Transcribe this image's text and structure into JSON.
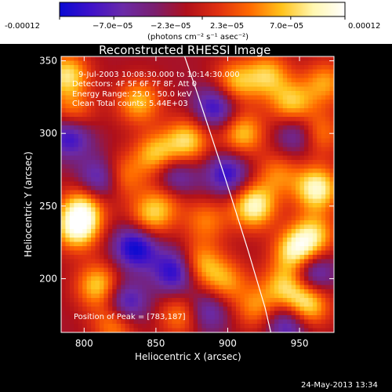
{
  "colorbar": {
    "tick_labels": [
      "-0.00012",
      "−7.0e−05",
      "−2.3e−05",
      "2.3e−05",
      "7.0e−05",
      "0.00012"
    ],
    "unit_label": "(photons cm⁻² s⁻¹ asec⁻²)",
    "colors": [
      "#0a0ad2",
      "#3f12c9",
      "#6a2aa8",
      "#7a1f6e",
      "#b0101a",
      "#e03010",
      "#ff6a00",
      "#ffc21a",
      "#fff7b0",
      "#ffffff"
    ]
  },
  "annotations": {
    "time_range": "9-Jul-2003 10:08:30.000 to 10:14:30.000",
    "detectors": "Detectors: 4F 5F 6F 7F 8F, Att 0",
    "energy": "Energy Range: 25.0 - 50.0 keV",
    "clean": "Clean    Total counts: 5.44E+03",
    "peak": "Position of Peak = [783,187]"
  },
  "footer": {
    "date": "24-May-2013 13:34"
  },
  "chart_data": {
    "type": "heatmap",
    "title": "Reconstructed RHESSI Image",
    "xlabel": "Heliocentric X (arcsec)",
    "ylabel": "Heliocentric Y (arcsec)",
    "xlim": [
      784,
      974
    ],
    "ylim": [
      163,
      353
    ],
    "x_ticks": [
      800,
      850,
      900,
      950
    ],
    "y_ticks": [
      200,
      250,
      300,
      350
    ],
    "limb_curve": {
      "x": [
        870,
        878,
        888,
        898,
        906,
        914,
        920,
        926,
        930
      ],
      "y": [
        353,
        330,
        300,
        270,
        245,
        220,
        200,
        180,
        163
      ]
    },
    "hot_spots": [
      {
        "x": 788,
        "y": 340,
        "v": 0.85
      },
      {
        "x": 792,
        "y": 312,
        "v": 0.7
      },
      {
        "x": 800,
        "y": 250,
        "v": 0.75
      },
      {
        "x": 795,
        "y": 235,
        "v": 1.0
      },
      {
        "x": 810,
        "y": 195,
        "v": 0.8
      },
      {
        "x": 825,
        "y": 270,
        "v": 0.65
      },
      {
        "x": 838,
        "y": 322,
        "v": 0.7
      },
      {
        "x": 850,
        "y": 285,
        "v": 0.75
      },
      {
        "x": 846,
        "y": 242,
        "v": 0.7
      },
      {
        "x": 858,
        "y": 258,
        "v": 0.6
      },
      {
        "x": 872,
        "y": 295,
        "v": 0.8
      },
      {
        "x": 880,
        "y": 210,
        "v": 0.7
      },
      {
        "x": 868,
        "y": 175,
        "v": 0.6
      },
      {
        "x": 822,
        "y": 170,
        "v": 0.75
      },
      {
        "x": 905,
        "y": 335,
        "v": 0.7
      },
      {
        "x": 910,
        "y": 300,
        "v": 0.75
      },
      {
        "x": 918,
        "y": 250,
        "v": 1.0
      },
      {
        "x": 898,
        "y": 198,
        "v": 0.6
      },
      {
        "x": 928,
        "y": 340,
        "v": 0.7
      },
      {
        "x": 945,
        "y": 320,
        "v": 0.75
      },
      {
        "x": 962,
        "y": 300,
        "v": 0.7
      },
      {
        "x": 962,
        "y": 262,
        "v": 1.0
      },
      {
        "x": 960,
        "y": 230,
        "v": 0.7
      },
      {
        "x": 948,
        "y": 218,
        "v": 1.0
      },
      {
        "x": 940,
        "y": 195,
        "v": 0.7
      },
      {
        "x": 955,
        "y": 182,
        "v": 0.95
      },
      {
        "x": 920,
        "y": 180,
        "v": 0.55
      },
      {
        "x": 968,
        "y": 335,
        "v": 0.6
      },
      {
        "x": 935,
        "y": 272,
        "v": 0.5
      },
      {
        "x": 885,
        "y": 240,
        "v": 0.5
      }
    ],
    "cold_spots": [
      {
        "x": 790,
        "y": 300,
        "v": -0.9
      },
      {
        "x": 812,
        "y": 268,
        "v": -0.8
      },
      {
        "x": 836,
        "y": 222,
        "v": -0.9
      },
      {
        "x": 828,
        "y": 182,
        "v": -0.85
      },
      {
        "x": 862,
        "y": 268,
        "v": -0.8
      },
      {
        "x": 892,
        "y": 318,
        "v": -0.75
      },
      {
        "x": 900,
        "y": 272,
        "v": -0.7
      },
      {
        "x": 864,
        "y": 205,
        "v": -0.85
      },
      {
        "x": 942,
        "y": 170,
        "v": -0.7
      },
      {
        "x": 958,
        "y": 205,
        "v": -0.8
      },
      {
        "x": 950,
        "y": 300,
        "v": -0.7
      },
      {
        "x": 885,
        "y": 178,
        "v": -0.6
      }
    ]
  }
}
